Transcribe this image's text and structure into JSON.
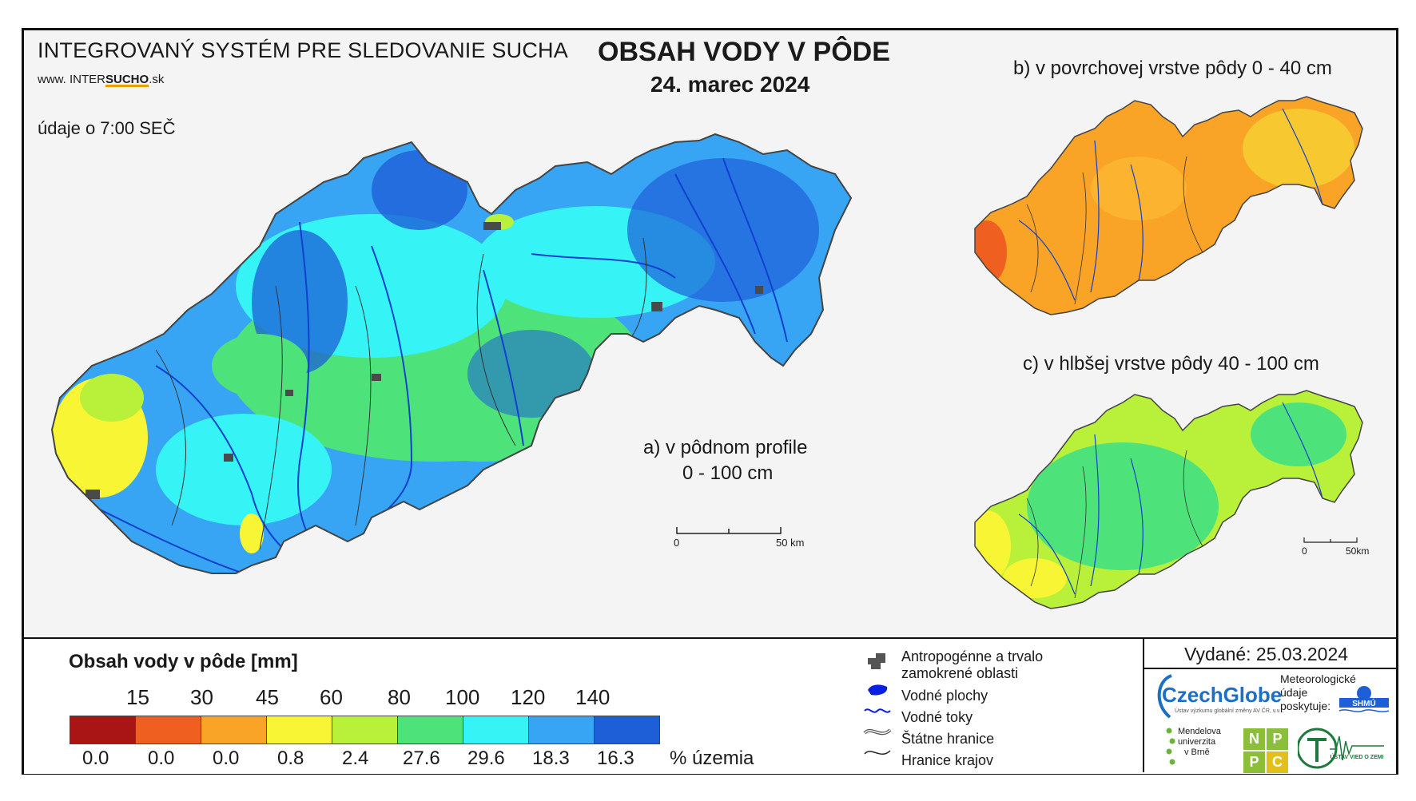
{
  "header": {
    "system_title": "INTEGROVANÝ SYSTÉM PRE SLEDOVANIE SUCHA",
    "web_prefix": "www. INTER",
    "web_brand": "SUCHO",
    "web_suffix": ".sk",
    "time_note": "údaje o 7:00 SEČ",
    "main_title": "OBSAH VODY V PÔDE",
    "date": "24. marec 2024"
  },
  "panels": {
    "a_line1": "a) v pôdnom profile",
    "a_line2": "0 - 100 cm",
    "b_title": "b) v povrchovej vrstve pôdy 0 - 40 cm",
    "c_title": "c) v hlbšej vrstve pôdy 40 - 100 cm"
  },
  "scalebar_main": {
    "start": "0",
    "end": "50 km"
  },
  "scalebar_small": {
    "start": "0",
    "end": "50km"
  },
  "legend": {
    "title": "Obsah vody v pôde  [mm]",
    "thresholds": [
      "15",
      "30",
      "45",
      "60",
      "80",
      "100",
      "120",
      "140"
    ],
    "classes": [
      {
        "color": "#a91515",
        "pct": "0.0"
      },
      {
        "color": "#ef6020",
        "pct": "0.0"
      },
      {
        "color": "#f9a327",
        "pct": "0.0"
      },
      {
        "color": "#f8f534",
        "pct": "0.8"
      },
      {
        "color": "#b8f03a",
        "pct": "2.4"
      },
      {
        "color": "#4ee37a",
        "pct": "27.6"
      },
      {
        "color": "#36f3f5",
        "pct": "29.6"
      },
      {
        "color": "#37a5f3",
        "pct": "18.3"
      },
      {
        "color": "#1e5fd8",
        "pct": "16.3"
      }
    ],
    "pct_unit": "% územia"
  },
  "symbols": {
    "urban": "Antropogénne a trvalo zamokrené oblasti",
    "urban_line1": "Antropogénne a trvalo",
    "urban_line2": "zamokrené oblasti",
    "water_bodies": "Vodné plochy",
    "rivers": "Vodné toky",
    "state_border": "Štátne hranice",
    "region_border": "Hranice krajov"
  },
  "issued": "Vydané: 25.03.2024",
  "logos": {
    "czechglobe": "CzechGlobe",
    "czechglobe_sub": "Ústav výzkumu globální změny AV ČR, v.v.i.",
    "met_line1": "Meteorologické",
    "met_line2": "údaje",
    "met_line3": "poskytuje:",
    "shmu": "SHMÚ",
    "mendel_line1": "Mendelova",
    "mendel_line2": "univerzita",
    "mendel_line3": "v Brně",
    "nppc": [
      "N",
      "P",
      "P",
      "C"
    ],
    "uvz": "ÚSTAV VIED O ZEMI"
  }
}
